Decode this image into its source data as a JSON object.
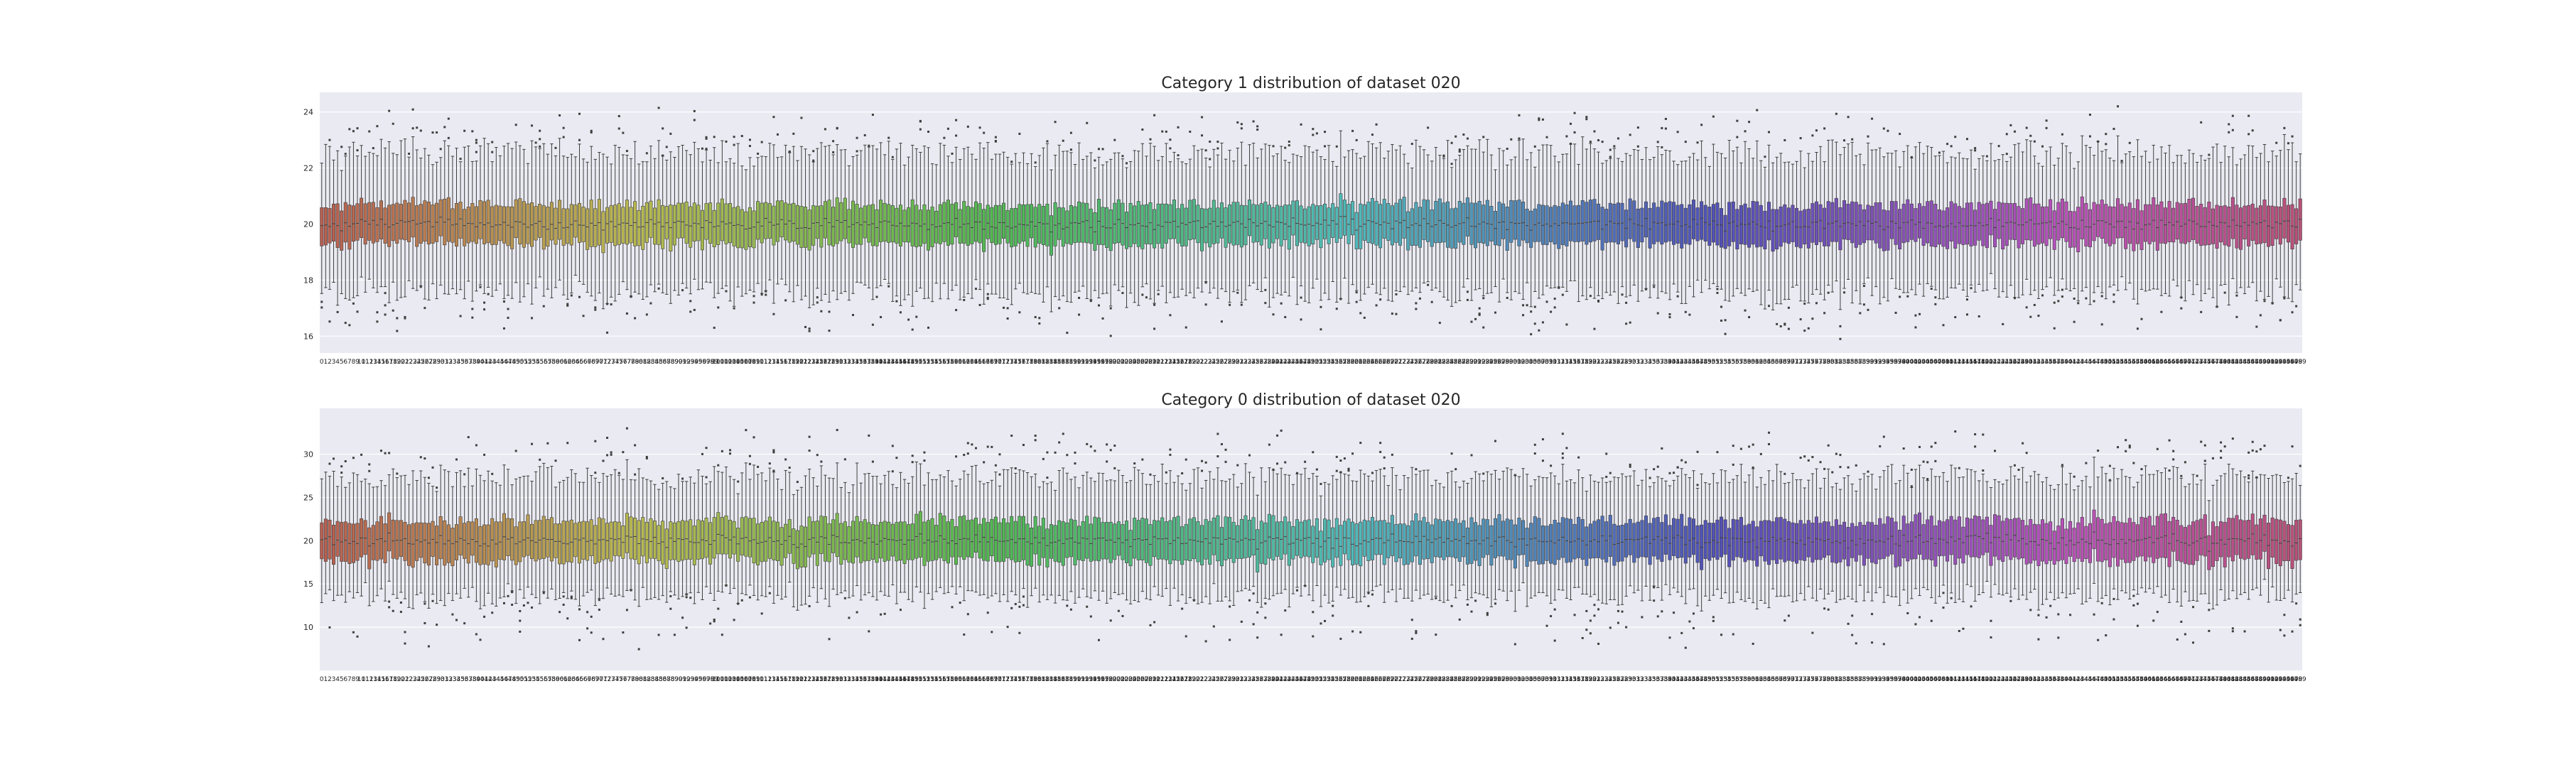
{
  "chart_data": [
    {
      "type": "box",
      "title": "Category 1 distribution of dataset 020",
      "xlabel": "",
      "ylabel": "",
      "ylim": [
        15.4,
        24.7
      ],
      "yticks": [
        16,
        18,
        20,
        22,
        24
      ],
      "grid": true,
      "legend": "none",
      "style": "seaborn darkgrid",
      "palette": "husl",
      "n_groups": 500,
      "x_tick_labels": "0 to 499",
      "box_summary": {
        "median": 20.0,
        "q1": 19.3,
        "q3": 20.7,
        "whisker_low": 17.5,
        "whisker_high": 22.6
      },
      "outlier_range": [
        15.9,
        24.2
      ],
      "seed": 20
    },
    {
      "type": "box",
      "title": "Category 0 distribution of dataset 020",
      "xlabel": "",
      "ylabel": "",
      "ylim": [
        5.0,
        35.3
      ],
      "yticks": [
        10,
        15,
        20,
        25,
        30
      ],
      "grid": true,
      "legend": "none",
      "style": "seaborn darkgrid",
      "palette": "husl",
      "n_groups": 500,
      "x_tick_labels": "0 to 499",
      "box_summary": {
        "median": 20.0,
        "q1": 17.8,
        "q3": 22.3,
        "whisker_low": 13.5,
        "whisker_high": 27.5
      },
      "outlier_range": [
        6.6,
        33.6
      ],
      "seed": 120
    }
  ]
}
